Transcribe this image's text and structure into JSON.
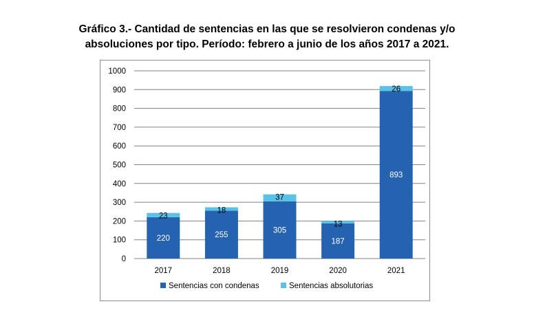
{
  "title_line1": "Gráfico 3.- Cantidad de sentencias en las que se resolvieron condenas y/o",
  "title_line2": "absoluciones por tipo. Período: febrero a junio de los años 2017 a 2021.",
  "colors": {
    "condenas": "#2563B0",
    "absolutorias": "#5BC2E7",
    "grid": "#808080"
  },
  "chart_data": {
    "type": "bar",
    "stacked": true,
    "title": "Gráfico 3.- Cantidad de sentencias en las que se resolvieron condenas y/o absoluciones por tipo. Período: febrero a junio de los años 2017 a 2021.",
    "categories": [
      "2017",
      "2018",
      "2019",
      "2020",
      "2021"
    ],
    "series": [
      {
        "name": "Sentencias con condenas",
        "values": [
          220,
          255,
          305,
          187,
          893
        ],
        "color": "#2563B0",
        "label_color": "#ffffff"
      },
      {
        "name": "Sentencias absolutorias",
        "values": [
          23,
          18,
          37,
          13,
          26
        ],
        "color": "#5BC2E7",
        "label_color": "#000000"
      }
    ],
    "ylim": [
      0,
      1000
    ],
    "yticks": [
      0,
      100,
      200,
      300,
      400,
      500,
      600,
      700,
      800,
      900,
      1000
    ],
    "grid": true,
    "legend_position": "bottom"
  }
}
